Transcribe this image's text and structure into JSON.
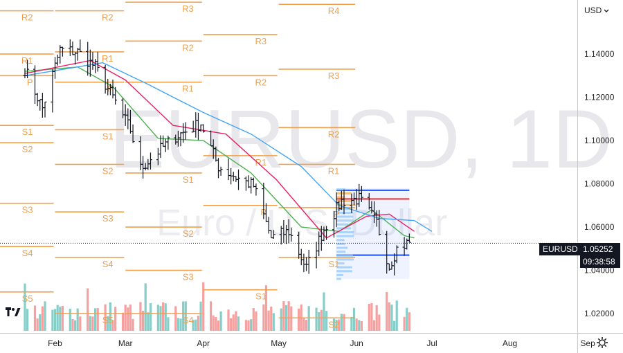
{
  "toolbar": {
    "currency": "USD"
  },
  "price_tag": {
    "symbol": "EURUSD",
    "price": "1.05252",
    "countdown": "09:38:58"
  },
  "watermark": {
    "title": "EURUSD, 1D",
    "subtitle": "Euro / U.S. Dollar"
  },
  "colors": {
    "up": "#26a69a",
    "down": "#ef5350",
    "pivot": "#f0a04b",
    "ma_fast": "#4caf50",
    "ma_mid": "#e91e63",
    "ma_slow": "#42a5f5",
    "vp_box": "#2962ff",
    "vp_high": "#e53935"
  },
  "icons": {
    "currency_caret": "chevron-down-icon",
    "settings": "gear-icon",
    "logo": "tradingview-logo-icon"
  },
  "chart_data": {
    "type": "candlestick",
    "symbol": "EURUSD",
    "timeframe": "1D",
    "ylim": [
      1.012,
      1.165
    ],
    "y_ticks": [
      "1.02000",
      "1.04000",
      "1.06000",
      "1.08000",
      "1.10000",
      "1.12000",
      "1.14000"
    ],
    "x_ticks": [
      "Feb",
      "Mar",
      "Apr",
      "May",
      "Jun",
      "Jul",
      "Aug",
      "Sep"
    ],
    "last_price": 1.05252,
    "bars_start": "2022-01-20",
    "close_path": [
      [
        "2022-01-20",
        1.133
      ],
      [
        "2022-01-27",
        1.115
      ],
      [
        "2022-02-03",
        1.142
      ],
      [
        "2022-02-10",
        1.141
      ],
      [
        "2022-02-17",
        1.134
      ],
      [
        "2022-02-24",
        1.12
      ],
      [
        "2022-03-03",
        1.105
      ],
      [
        "2022-03-07",
        1.087
      ],
      [
        "2022-03-14",
        1.095
      ],
      [
        "2022-03-21",
        1.102
      ],
      [
        "2022-03-31",
        1.108
      ],
      [
        "2022-04-07",
        1.088
      ],
      [
        "2022-04-14",
        1.083
      ],
      [
        "2022-04-21",
        1.079
      ],
      [
        "2022-04-28",
        1.055
      ],
      [
        "2022-05-05",
        1.058
      ],
      [
        "2022-05-12",
        1.041
      ],
      [
        "2022-05-19",
        1.059
      ],
      [
        "2022-05-26",
        1.072
      ],
      [
        "2022-06-02",
        1.073
      ],
      [
        "2022-06-09",
        1.062
      ],
      [
        "2022-06-14",
        1.042
      ],
      [
        "2022-06-17",
        1.05
      ],
      [
        "2022-06-22",
        1.053
      ]
    ],
    "moving_averages": [
      {
        "color": "#4caf50",
        "points": [
          [
            "2022-01-20",
            1.132
          ],
          [
            "2022-02-10",
            1.134
          ],
          [
            "2022-02-24",
            1.125
          ],
          [
            "2022-03-14",
            1.101
          ],
          [
            "2022-04-01",
            1.1
          ],
          [
            "2022-04-20",
            1.085
          ],
          [
            "2022-05-10",
            1.06
          ],
          [
            "2022-05-25",
            1.058
          ],
          [
            "2022-06-07",
            1.068
          ],
          [
            "2022-06-20",
            1.056
          ],
          [
            "2022-06-24",
            1.055
          ]
        ]
      },
      {
        "color": "#e91e63",
        "points": [
          [
            "2022-01-20",
            1.131
          ],
          [
            "2022-02-15",
            1.137
          ],
          [
            "2022-03-01",
            1.128
          ],
          [
            "2022-03-20",
            1.107
          ],
          [
            "2022-04-10",
            1.103
          ],
          [
            "2022-04-30",
            1.082
          ],
          [
            "2022-05-20",
            1.055
          ],
          [
            "2022-06-05",
            1.065
          ],
          [
            "2022-06-14",
            1.066
          ],
          [
            "2022-06-24",
            1.058
          ]
        ]
      },
      {
        "color": "#42a5f5",
        "points": [
          [
            "2022-01-20",
            1.13
          ],
          [
            "2022-02-20",
            1.136
          ],
          [
            "2022-03-10",
            1.126
          ],
          [
            "2022-04-01",
            1.113
          ],
          [
            "2022-04-20",
            1.103
          ],
          [
            "2022-05-10",
            1.088
          ],
          [
            "2022-05-25",
            1.07
          ],
          [
            "2022-06-10",
            1.064
          ],
          [
            "2022-06-24",
            1.063
          ],
          [
            "2022-07-01",
            1.058
          ]
        ]
      }
    ],
    "pivots": [
      {
        "label": "R2",
        "value": 1.16,
        "from": "2022-01-01",
        "to": "2022-02-01",
        "label_at": "2022-01-24"
      },
      {
        "label": "R1",
        "value": 1.14,
        "from": "2022-01-01",
        "to": "2022-02-01",
        "label_at": "2022-01-24"
      },
      {
        "label": "P",
        "value": 1.13,
        "from": "2022-01-01",
        "to": "2022-02-01",
        "label_at": "2022-01-24"
      },
      {
        "label": "S1",
        "value": 1.107,
        "from": "2022-01-01",
        "to": "2022-02-01",
        "label_at": "2022-01-24"
      },
      {
        "label": "S2",
        "value": 1.099,
        "from": "2022-01-01",
        "to": "2022-02-01",
        "label_at": "2022-01-24"
      },
      {
        "label": "S3",
        "value": 1.071,
        "from": "2022-01-01",
        "to": "2022-02-01",
        "label_at": "2022-01-24"
      },
      {
        "label": "S4",
        "value": 1.051,
        "from": "2022-01-01",
        "to": "2022-02-01",
        "label_at": "2022-01-24"
      },
      {
        "label": "S5",
        "value": 1.03,
        "from": "2022-01-01",
        "to": "2022-02-01",
        "label_at": "2022-01-24"
      },
      {
        "label": "R2",
        "value": 1.16,
        "from": "2022-02-01",
        "to": "2022-03-01",
        "label_at": "2022-02-25"
      },
      {
        "label": "R1",
        "value": 1.141,
        "from": "2022-02-01",
        "to": "2022-03-01",
        "label_at": "2022-02-25"
      },
      {
        "label": "P",
        "value": 1.127,
        "from": "2022-02-01",
        "to": "2022-03-01",
        "label_at": "2022-02-25"
      },
      {
        "label": "S1",
        "value": 1.105,
        "from": "2022-02-01",
        "to": "2022-03-01",
        "label_at": "2022-02-25"
      },
      {
        "label": "S2",
        "value": 1.089,
        "from": "2022-02-01",
        "to": "2022-03-01",
        "label_at": "2022-02-25"
      },
      {
        "label": "S3",
        "value": 1.067,
        "from": "2022-02-01",
        "to": "2022-03-01",
        "label_at": "2022-02-25"
      },
      {
        "label": "S4",
        "value": 1.046,
        "from": "2022-02-01",
        "to": "2022-03-01",
        "label_at": "2022-02-25"
      },
      {
        "label": "S5",
        "value": 1.02,
        "from": "2022-02-01",
        "to": "2022-03-01",
        "label_at": "2022-02-25"
      },
      {
        "label": "R3",
        "value": 1.164,
        "from": "2022-03-01",
        "to": "2022-04-01",
        "label_at": "2022-03-29"
      },
      {
        "label": "R2",
        "value": 1.146,
        "from": "2022-03-01",
        "to": "2022-04-01",
        "label_at": "2022-03-29"
      },
      {
        "label": "R1",
        "value": 1.127,
        "from": "2022-03-01",
        "to": "2022-04-01",
        "label_at": "2022-03-29"
      },
      {
        "label": "S1",
        "value": 1.085,
        "from": "2022-03-01",
        "to": "2022-04-01",
        "label_at": "2022-03-29"
      },
      {
        "label": "S2",
        "value": 1.06,
        "from": "2022-03-01",
        "to": "2022-04-01",
        "label_at": "2022-03-29"
      },
      {
        "label": "S3",
        "value": 1.04,
        "from": "2022-03-01",
        "to": "2022-04-01",
        "label_at": "2022-03-29"
      },
      {
        "label": "S4",
        "value": 1.02,
        "from": "2022-03-01",
        "to": "2022-04-01",
        "label_at": "2022-03-29"
      },
      {
        "label": "R3",
        "value": 1.149,
        "from": "2022-04-01",
        "to": "2022-05-01",
        "label_at": "2022-04-27"
      },
      {
        "label": "R2",
        "value": 1.13,
        "from": "2022-04-01",
        "to": "2022-05-01",
        "label_at": "2022-04-27"
      },
      {
        "label": "R1",
        "value": 1.093,
        "from": "2022-04-01",
        "to": "2022-05-01",
        "label_at": "2022-04-27"
      },
      {
        "label": "P",
        "value": 1.07,
        "from": "2022-04-01",
        "to": "2022-05-01",
        "label_at": "2022-04-27"
      },
      {
        "label": "S1",
        "value": 1.031,
        "from": "2022-04-01",
        "to": "2022-05-01",
        "label_at": "2022-04-27"
      },
      {
        "label": "R4",
        "value": 1.163,
        "from": "2022-05-01",
        "to": "2022-06-01",
        "label_at": "2022-05-26"
      },
      {
        "label": "R3",
        "value": 1.133,
        "from": "2022-05-01",
        "to": "2022-06-01",
        "label_at": "2022-05-26"
      },
      {
        "label": "R2",
        "value": 1.106,
        "from": "2022-05-01",
        "to": "2022-06-01",
        "label_at": "2022-05-26"
      },
      {
        "label": "R1",
        "value": 1.089,
        "from": "2022-05-01",
        "to": "2022-06-01",
        "label_at": "2022-05-26"
      },
      {
        "label": "P",
        "value": 1.069,
        "from": "2022-05-01",
        "to": "2022-06-01",
        "label_at": "2022-05-26"
      },
      {
        "label": "S1",
        "value": 1.046,
        "from": "2022-05-01",
        "to": "2022-06-01",
        "label_at": "2022-05-26"
      },
      {
        "label": "S2",
        "value": 1.018,
        "from": "2022-05-01",
        "to": "2022-06-01",
        "label_at": "2022-05-26"
      }
    ],
    "volume_profile": {
      "from": "2022-05-24",
      "to": "2022-06-22",
      "high": 1.078,
      "low": 1.036,
      "top_line": 1.077,
      "poc": 1.073,
      "bottom_line": 1.047
    },
    "volume_max_bars": 420
  }
}
